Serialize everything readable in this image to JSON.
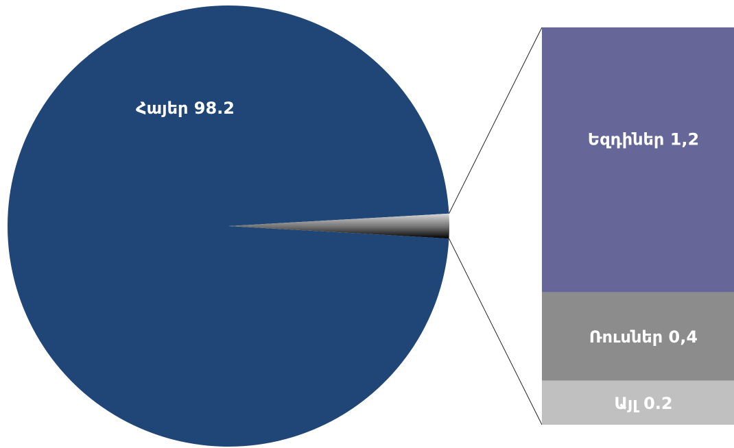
{
  "chart_data": {
    "type": "bar-of-pie",
    "pie": {
      "slices": [
        {
          "name": "Հայեր",
          "label": "Հայեր 98.2",
          "value": 98.2,
          "color": "#1f4677"
        },
        {
          "name": "Other",
          "label": "",
          "value": 1.8,
          "color": "#7f7f7f",
          "exploded_into_bar": true
        }
      ]
    },
    "bar": {
      "segments": [
        {
          "name": "Եզդիներ",
          "label": "Եզդիներ 1,2",
          "value": 1.2,
          "color": "#666699"
        },
        {
          "name": "Ռուսներ",
          "label": "Ռուսներ 0,4",
          "value": 0.4,
          "color": "#8c8c8c"
        },
        {
          "name": "Այլ",
          "label": "Այլ 0.2",
          "value": 0.2,
          "color": "#c0c0c0"
        }
      ]
    },
    "legend": "none",
    "title": ""
  }
}
